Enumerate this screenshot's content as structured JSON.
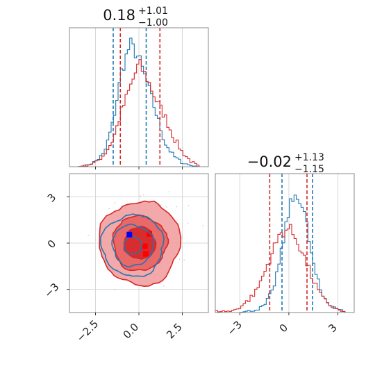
{
  "chart_data": {
    "type": "corner",
    "panels": [
      {
        "position": "top-left",
        "type": "histogram",
        "parameter_index": 0,
        "title": {
          "median": "0.18",
          "plus": "+1.01",
          "minus": "−1.00"
        },
        "xlim": [
          -4,
          4
        ],
        "grid": true,
        "series": [
          {
            "name": "",
            "color": "#1f77b4",
            "x": [
              -3.5,
              -3.0,
              -2.5,
              -2.0,
              -1.5,
              -1.0,
              -0.5,
              0.0,
              0.5,
              1.0,
              1.5,
              2.0,
              2.5,
              3.0,
              3.5
            ],
            "values": [
              0.0,
              0.01,
              0.04,
              0.1,
              0.33,
              0.72,
              0.93,
              0.82,
              0.62,
              0.4,
              0.18,
              0.08,
              0.03,
              0.01,
              0.0
            ],
            "quantiles": [
              -1.48,
              0.42
            ]
          },
          {
            "name": "",
            "color": "#d62728",
            "x": [
              -3.5,
              -3.0,
              -2.5,
              -2.0,
              -1.5,
              -1.0,
              -0.5,
              0.0,
              0.5,
              1.0,
              1.5,
              2.0,
              2.5,
              3.0,
              3.5
            ],
            "values": [
              0.0,
              0.01,
              0.03,
              0.09,
              0.2,
              0.42,
              0.6,
              0.78,
              0.66,
              0.5,
              0.38,
              0.22,
              0.11,
              0.04,
              0.0
            ],
            "quantiles": [
              -1.07,
              1.21
            ]
          }
        ],
        "x_ticks": [
          -2.5,
          0.0,
          2.5
        ]
      },
      {
        "position": "bottom-left",
        "type": "2d-density",
        "xlim": [
          -4,
          4
        ],
        "ylim": [
          -4.5,
          4.5
        ],
        "x_ticks": [
          -2.5,
          0.0,
          2.5
        ],
        "x_tick_labels": [
          "−2.5",
          "0.0",
          "2.5"
        ],
        "y_ticks": [
          -3,
          0,
          3
        ],
        "y_tick_labels": [
          "−3",
          "0",
          "3"
        ],
        "grid": true,
        "series": [
          {
            "name": "",
            "color": "#d62728",
            "center": [
              0.05,
              0.0
            ],
            "spread": [
              1.0,
              1.15
            ],
            "levels": [
              0.9,
              1.55,
              2.35
            ],
            "markers": [
              [
                0.6,
                0.6
              ],
              [
                0.35,
                -0.2
              ],
              [
                0.4,
                -0.7
              ]
            ]
          },
          {
            "name": "",
            "color": "#1f77b4",
            "center": [
              -0.35,
              -0.15
            ],
            "spread": [
              0.85,
              0.95
            ],
            "levels": [
              0.6,
              1.4,
              2.1
            ],
            "markers": [
              [
                -0.55,
                0.55
              ]
            ]
          }
        ]
      },
      {
        "position": "bottom-right",
        "type": "histogram",
        "parameter_index": 1,
        "title": {
          "median": "−0.02",
          "plus": "+1.13",
          "minus": "−1.15"
        },
        "xlim": [
          -4.5,
          4.0
        ],
        "grid": true,
        "x_ticks": [
          -3,
          0,
          3
        ],
        "x_tick_labels": [
          "−3",
          "0",
          "3"
        ],
        "series": [
          {
            "name": "",
            "color": "#1f77b4",
            "x": [
              -3.0,
              -2.5,
              -2.0,
              -1.5,
              -1.0,
              -0.5,
              0.0,
              0.5,
              1.0,
              1.5,
              2.0,
              2.5,
              3.0,
              3.5
            ],
            "values": [
              0.0,
              0.01,
              0.02,
              0.05,
              0.16,
              0.42,
              0.78,
              0.92,
              0.72,
              0.36,
              0.14,
              0.06,
              0.03,
              0.0
            ],
            "quantiles": [
              -0.42,
              1.45
            ]
          },
          {
            "name": "",
            "color": "#d62728",
            "x": [
              -3.5,
              -3.0,
              -2.5,
              -2.0,
              -1.5,
              -1.0,
              -0.5,
              0.0,
              0.5,
              1.0,
              1.5,
              2.0,
              2.5,
              3.0,
              3.5
            ],
            "values": [
              0.01,
              0.04,
              0.09,
              0.16,
              0.3,
              0.46,
              0.6,
              0.64,
              0.55,
              0.4,
              0.24,
              0.12,
              0.06,
              0.02,
              0.0
            ],
            "quantiles": [
              -1.17,
              1.11
            ]
          }
        ]
      }
    ]
  }
}
